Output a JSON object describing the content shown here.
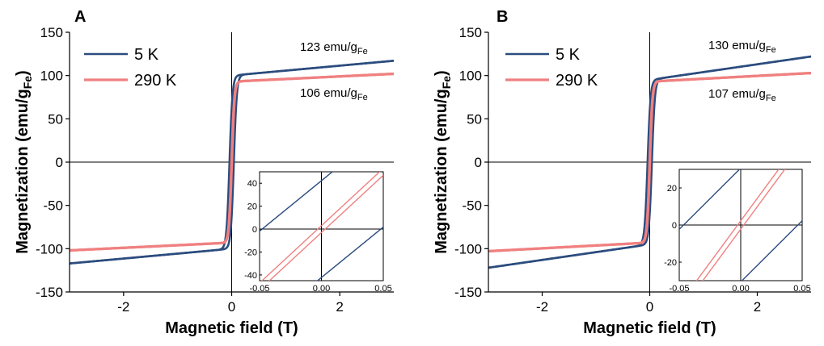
{
  "chart_data": [
    {
      "type": "line",
      "panel_label": "A",
      "xlabel": "Magnetic field (T)",
      "ylabel": "Magnetization (emu/g",
      "ylabel_sub": "Fe",
      "ylabel_end": ")",
      "xlim": [
        -3,
        3
      ],
      "ylim": [
        -150,
        150
      ],
      "xticks": [
        -2,
        0,
        2
      ],
      "xtick_labels": [
        "-2",
        "0",
        "2"
      ],
      "yticks": [
        -150,
        -100,
        -50,
        0,
        50,
        100,
        150
      ],
      "ytick_labels": [
        "-150",
        "-100",
        "-50",
        "0",
        "50",
        "100",
        "150"
      ],
      "legend": {
        "position": "top-left",
        "entries": [
          "5 K",
          "290 K"
        ]
      },
      "series": [
        {
          "name": "5 K",
          "color": "#2b4c7e",
          "Ms": 100,
          "a": 0.055,
          "slope": 5.7,
          "coercivity": 0.04
        },
        {
          "name": "290 K",
          "color": "#f08080",
          "Ms": 93,
          "a": 0.05,
          "slope": 3.0,
          "coercivity": 0.002
        }
      ],
      "annotations": [
        {
          "text": "123 emu/g",
          "sub": "Fe",
          "anchor_series": "5 K"
        },
        {
          "text": "106 emu/g",
          "sub": "Fe",
          "anchor_series": "290 K"
        }
      ],
      "inset": {
        "xlim": [
          -0.05,
          0.05
        ],
        "ylim": [
          -45,
          50
        ],
        "xticks": [
          -0.05,
          0,
          0.05
        ],
        "xtick_labels": [
          "-0.05",
          "0.00",
          "0.05"
        ],
        "yticks": [
          -40,
          -20,
          0,
          20,
          40
        ],
        "ytick_labels": [
          "-40",
          "-20",
          "0",
          "20",
          "40"
        ],
        "hc_red": 0.003,
        "red_slope": 1000,
        "hc_blue": 0.048,
        "blue_slope": 880
      }
    },
    {
      "type": "line",
      "panel_label": "B",
      "xlabel": "Magnetic field (T)",
      "ylabel": "Magnetization (emu/g",
      "ylabel_sub": "Fe",
      "ylabel_end": ")",
      "xlim": [
        -3,
        3
      ],
      "ylim": [
        -150,
        150
      ],
      "xticks": [
        -2,
        0,
        2
      ],
      "xtick_labels": [
        "-2",
        "0",
        "2"
      ],
      "yticks": [
        -150,
        -100,
        -50,
        0,
        50,
        100,
        150
      ],
      "ytick_labels": [
        "-150",
        "-100",
        "-50",
        "0",
        "50",
        "100",
        "150"
      ],
      "legend": {
        "position": "top-left",
        "entries": [
          "5 K",
          "290 K"
        ]
      },
      "series": [
        {
          "name": "5 K",
          "color": "#2b4c7e",
          "Ms": 95,
          "a": 0.055,
          "slope": 9.0,
          "coercivity": 0.04
        },
        {
          "name": "290 K",
          "color": "#f08080",
          "Ms": 93,
          "a": 0.05,
          "slope": 3.3,
          "coercivity": 0.002
        }
      ],
      "annotations": [
        {
          "text": "130 emu/g",
          "sub": "Fe",
          "anchor_series": "5 K"
        },
        {
          "text": "107 emu/g",
          "sub": "Fe",
          "anchor_series": "290 K"
        }
      ],
      "inset": {
        "xlim": [
          -0.05,
          0.05
        ],
        "ylim": [
          -30,
          30
        ],
        "xticks": [
          -0.05,
          0,
          0.05
        ],
        "xtick_labels": [
          "-0.05",
          "0.00",
          "0.05"
        ],
        "yticks": [
          -20,
          0,
          20
        ],
        "ytick_labels": [
          "-20",
          "0",
          "20"
        ],
        "hc_red": 0.0025,
        "red_slope": 900,
        "hc_blue": 0.0465,
        "blue_slope": 660
      }
    }
  ]
}
